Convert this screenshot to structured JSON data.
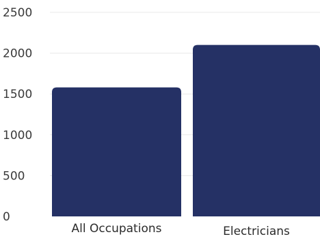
{
  "chart_data": {
    "type": "bar",
    "categories": [
      "All Occupations",
      "Electricians"
    ],
    "values": [
      1580,
      2100
    ],
    "title": "",
    "xlabel": "",
    "ylabel": "",
    "ylim": [
      0,
      2500
    ],
    "yticks": [
      0,
      500,
      1000,
      1500,
      2000,
      2500
    ],
    "grid": true,
    "bar_color": "#253165",
    "grid_color": "#e8e8e8"
  }
}
